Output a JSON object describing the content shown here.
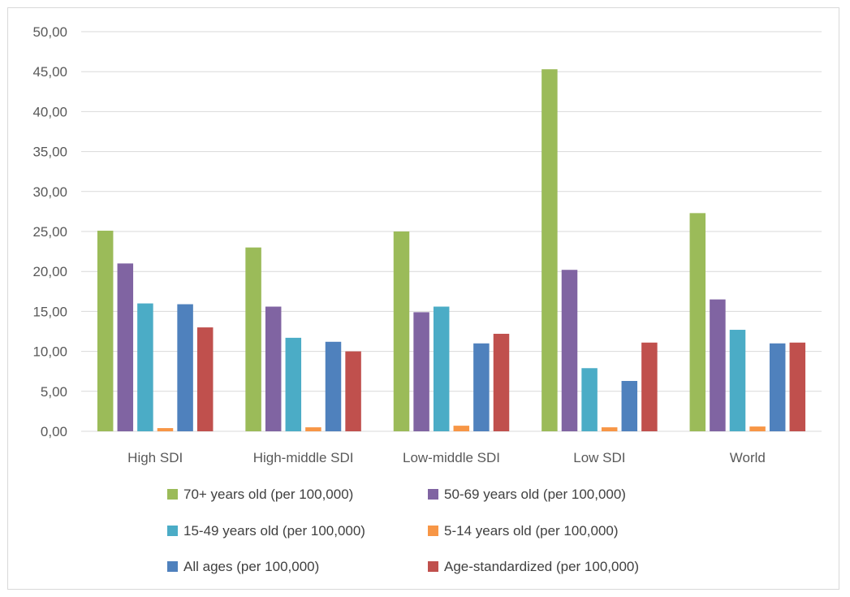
{
  "chart_data": {
    "type": "bar",
    "title": "",
    "xlabel": "",
    "ylabel": "",
    "categories": [
      "High SDI",
      "High-middle SDI",
      "Low-middle SDI",
      "Low SDI",
      "World"
    ],
    "ylim": [
      0,
      50
    ],
    "yticks": [
      "0,00",
      "5,00",
      "10,00",
      "15,00",
      "20,00",
      "25,00",
      "30,00",
      "35,00",
      "40,00",
      "45,00",
      "50,00"
    ],
    "grid": true,
    "legend_position": "bottom",
    "series": [
      {
        "name": "70+ years old (per 100,000)",
        "color": "#9bbb59",
        "values": [
          25.1,
          23.0,
          25.0,
          45.3,
          27.3
        ]
      },
      {
        "name": "50-69 years old (per 100,000)",
        "color": "#8064a2",
        "values": [
          21.0,
          15.6,
          14.9,
          20.2,
          16.5
        ]
      },
      {
        "name": "15-49 years old (per 100,000)",
        "color": "#4bacc6",
        "values": [
          16.0,
          11.7,
          15.6,
          7.9,
          12.7
        ]
      },
      {
        "name": "5-14 years old (per 100,000)",
        "color": "#f79646",
        "values": [
          0.4,
          0.5,
          0.7,
          0.5,
          0.6
        ]
      },
      {
        "name": "All ages (per 100,000)",
        "color": "#4f81bd",
        "values": [
          15.9,
          11.2,
          11.0,
          6.3,
          11.0
        ]
      },
      {
        "name": "Age-standardized (per 100,000)",
        "color": "#c0504d",
        "values": [
          13.0,
          10.0,
          12.2,
          11.1,
          11.1
        ]
      }
    ]
  }
}
